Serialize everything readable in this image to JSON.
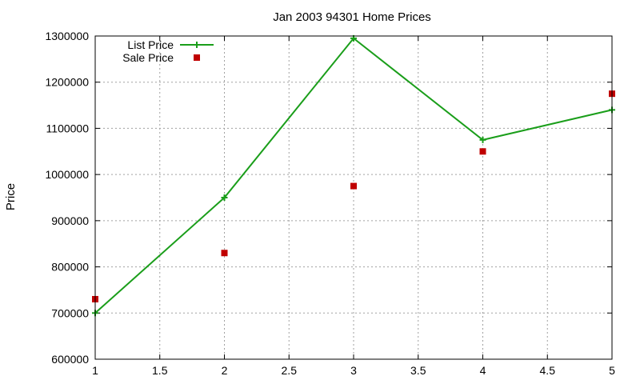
{
  "chart_data": {
    "type": "line",
    "title": "Jan 2003 94301 Home Prices",
    "xlabel": "",
    "ylabel": "Price",
    "xlim": [
      1,
      5
    ],
    "ylim": [
      600000,
      1300000
    ],
    "x_ticks": [
      1,
      1.5,
      2,
      2.5,
      3,
      3.5,
      4,
      4.5,
      5
    ],
    "x_tick_labels": [
      "1",
      "1.5",
      "2",
      "2.5",
      "3",
      "3.5",
      "4",
      "4.5",
      "5"
    ],
    "y_ticks": [
      600000,
      700000,
      800000,
      900000,
      1000000,
      1100000,
      1200000,
      1300000
    ],
    "y_tick_labels": [
      "600000",
      "700000",
      "800000",
      "900000",
      "1000000",
      "1100000",
      "1200000",
      "1300000"
    ],
    "grid": true,
    "legend_position": "top-left",
    "series": [
      {
        "name": "List Price",
        "style": "linespoints",
        "marker": "plus",
        "color": "#1a9e1a",
        "x": [
          1,
          2,
          3,
          4,
          5
        ],
        "y": [
          700000,
          950000,
          1295000,
          1075000,
          1140000
        ]
      },
      {
        "name": "Sale Price",
        "style": "points",
        "marker": "square",
        "color": "#c00000",
        "x": [
          1,
          2,
          3,
          4,
          5
        ],
        "y": [
          730000,
          830000,
          975000,
          1050000,
          1175000
        ]
      }
    ]
  }
}
